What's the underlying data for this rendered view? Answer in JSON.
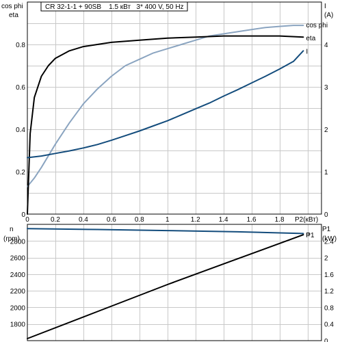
{
  "chart_data": [
    {
      "type": "line",
      "title": "CR 32-1-1 + 90SB    1.5 кВт   3* 400 V, 50 Hz",
      "xlabel": "P2(кВт)",
      "ylabel_left": [
        "cos phi",
        "eta"
      ],
      "ylabel_right": [
        "I",
        "(A)"
      ],
      "xlim": [
        0,
        2.1
      ],
      "ylim_left": [
        0,
        1.0
      ],
      "ylim_right": [
        0,
        5
      ],
      "x_ticks": [
        "0",
        "0.2",
        "0.4",
        "0.6",
        "0.8",
        "1",
        "1.2",
        "1.4",
        "1.6",
        "1.8"
      ],
      "y_ticks_left": [
        "0",
        "0.2",
        "0.4",
        "0.6",
        "0.8"
      ],
      "y_ticks_right": [
        "0",
        "1",
        "2",
        "3",
        "4"
      ],
      "grid": true,
      "series": [
        {
          "name": "cos phi",
          "axis": "left",
          "color": "#8aa4c0",
          "x": [
            0,
            0.05,
            0.1,
            0.2,
            0.3,
            0.4,
            0.5,
            0.6,
            0.7,
            0.8,
            0.9,
            1.0,
            1.1,
            1.2,
            1.3,
            1.4,
            1.5,
            1.6,
            1.7,
            1.8,
            1.9,
            1.97
          ],
          "values": [
            0.13,
            0.17,
            0.22,
            0.33,
            0.43,
            0.52,
            0.59,
            0.65,
            0.7,
            0.73,
            0.76,
            0.78,
            0.8,
            0.82,
            0.84,
            0.85,
            0.86,
            0.87,
            0.88,
            0.885,
            0.89,
            0.89
          ]
        },
        {
          "name": "eta",
          "axis": "left",
          "color": "#000000",
          "x": [
            0,
            0.02,
            0.05,
            0.1,
            0.15,
            0.2,
            0.3,
            0.4,
            0.5,
            0.6,
            0.8,
            1.0,
            1.2,
            1.4,
            1.6,
            1.8,
            1.97
          ],
          "values": [
            0,
            0.38,
            0.55,
            0.65,
            0.7,
            0.735,
            0.77,
            0.79,
            0.8,
            0.81,
            0.82,
            0.83,
            0.835,
            0.84,
            0.84,
            0.84,
            0.835
          ]
        },
        {
          "name": "I",
          "axis": "right",
          "color": "#134c7c",
          "x": [
            0,
            0.1,
            0.2,
            0.3,
            0.4,
            0.5,
            0.6,
            0.7,
            0.8,
            0.9,
            1.0,
            1.1,
            1.2,
            1.3,
            1.4,
            1.5,
            1.6,
            1.7,
            1.8,
            1.9,
            1.97
          ],
          "values": [
            1.33,
            1.37,
            1.43,
            1.49,
            1.56,
            1.64,
            1.74,
            1.85,
            1.96,
            2.08,
            2.2,
            2.34,
            2.48,
            2.62,
            2.78,
            2.93,
            3.09,
            3.25,
            3.42,
            3.6,
            3.85
          ]
        }
      ]
    },
    {
      "type": "line",
      "ylabel_left": [
        "n",
        "(rpm)"
      ],
      "ylabel_right": [
        "P1",
        "(kW)"
      ],
      "xlim": [
        0,
        2.1
      ],
      "ylim_left": [
        1600,
        3000
      ],
      "ylim_right": [
        0,
        2.8
      ],
      "y_ticks_left": [
        "1800",
        "2000",
        "2200",
        "2400",
        "2600",
        "2800"
      ],
      "y_ticks_right": [
        "0",
        "0.4",
        "0.8",
        "1.2",
        "1.6",
        "2",
        "2.4"
      ],
      "grid": true,
      "series": [
        {
          "name": "n",
          "axis": "left",
          "color": "#134c7c",
          "x": [
            0,
            0.5,
            1.0,
            1.5,
            1.97
          ],
          "values": [
            2948,
            2938,
            2925,
            2910,
            2890
          ]
        },
        {
          "name": "P1",
          "axis": "right",
          "color": "#000000",
          "x": [
            0,
            0.5,
            1.0,
            1.5,
            1.97
          ],
          "values": [
            0.05,
            0.7,
            1.35,
            1.97,
            2.55
          ]
        }
      ]
    }
  ]
}
